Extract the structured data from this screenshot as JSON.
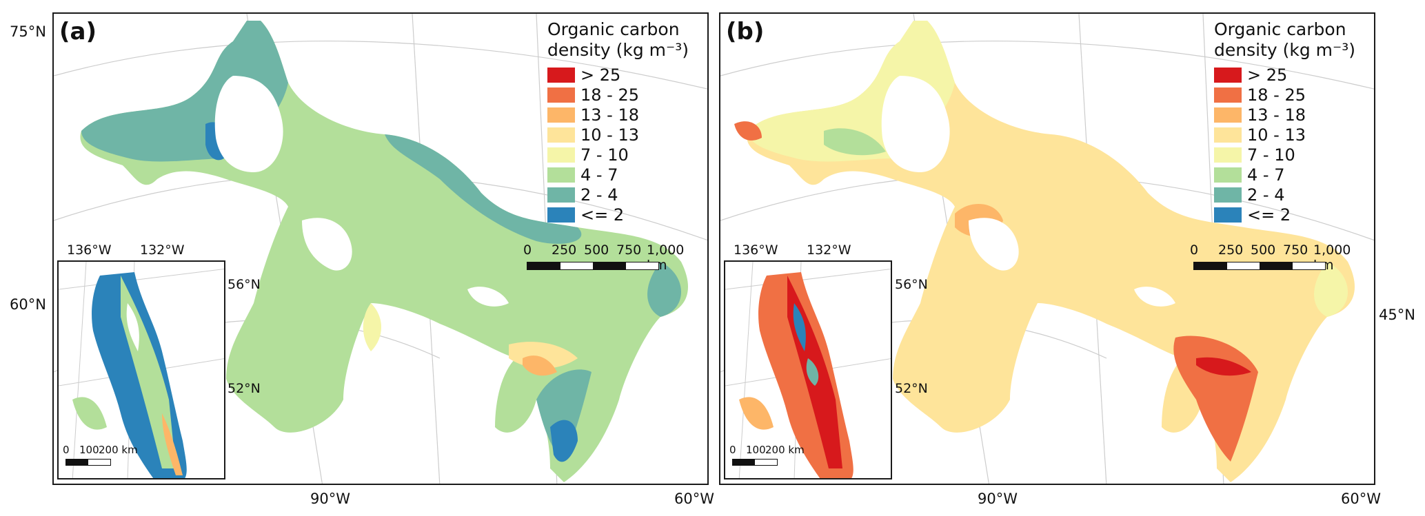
{
  "panels": {
    "a": {
      "label": "(a)"
    },
    "b": {
      "label": "(b)"
    }
  },
  "legend": {
    "title_line1": "Organic carbon",
    "title_line2": "density (kg m⁻³)",
    "classes": [
      {
        "label": "> 25",
        "color": "#d7191c"
      },
      {
        "label": "18 - 25",
        "color": "#f07044"
      },
      {
        "label": "13 - 18",
        "color": "#fdb668"
      },
      {
        "label": "10 - 13",
        "color": "#fee49a"
      },
      {
        "label": "7 - 10",
        "color": "#f5f5a8"
      },
      {
        "label": "4 - 7",
        "color": "#b3df9a"
      },
      {
        "label": "2 - 4",
        "color": "#6fb5a6"
      },
      {
        "label": "<= 2",
        "color": "#2b83ba"
      }
    ]
  },
  "scalebar": {
    "l0": "0",
    "l1": "250",
    "l2": "500",
    "l3": "750",
    "l4": "1,000 km"
  },
  "inset_scale": {
    "l0": "0",
    "l1": "100",
    "l2": "200 km"
  },
  "graticule": {
    "lat_75": "75°N",
    "lat_60": "60°N",
    "lon_90": "90°W",
    "lon_60": "60°W",
    "lon_45": "45°N"
  },
  "inset_graticule": {
    "lon_136": "136°W",
    "lon_132": "132°W",
    "lat_56": "56°N",
    "lat_52": "52°N"
  },
  "colors": {
    "border": "#1a1a1a",
    "grid": "#cccccc"
  }
}
